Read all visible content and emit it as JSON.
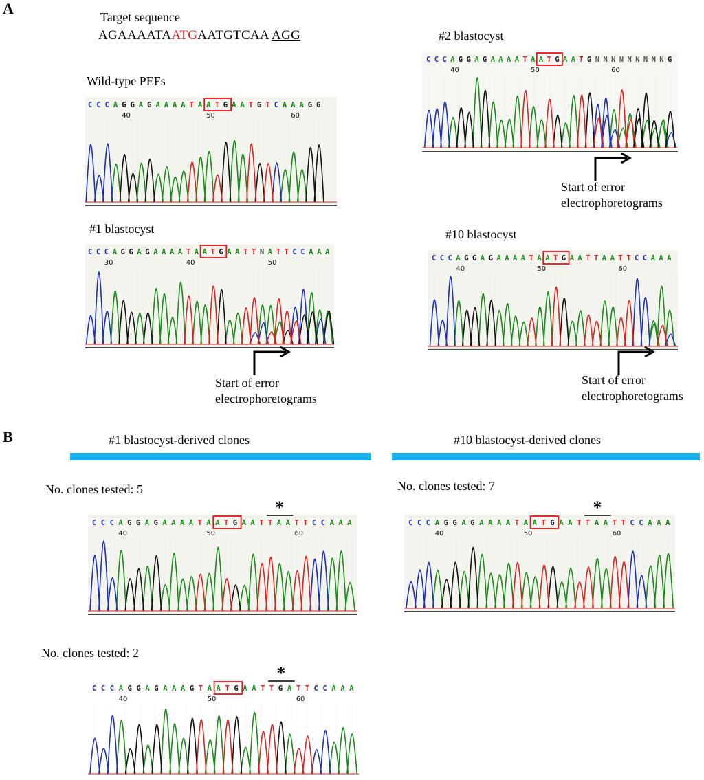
{
  "panel_labels": {
    "a": "A",
    "b": "B"
  },
  "target": {
    "title": "Target sequence",
    "pre": "AGAAAATA",
    "atg": "ATG",
    "mid": "AATGTCAA",
    "pam": "AGG"
  },
  "colors": {
    "A": "#1a8a1a",
    "C": "#1c2fb8",
    "G": "#111111",
    "T": "#e0201e",
    "N": "#555555",
    "box": "#e8141c",
    "bar": "#1ab0ea"
  },
  "traces": [
    {
      "id": "wt",
      "title": "Wild-type PEFs",
      "bases": "CCCAGGAGAAAATAATGAATGTCAAAGG",
      "ticks": [
        "40",
        "50",
        "60"
      ]
    },
    {
      "id": "b1",
      "title": "#1 blastocyst",
      "bases": "CCCAGGAGAAAATAATGAATTNATTCCAAA",
      "ticks": [
        "30",
        "40",
        "50"
      ]
    },
    {
      "id": "b2",
      "title": "#2 blastocyst",
      "bases": "CCCAGGAGAAAATAATGAATGNNNNNNNNNG",
      "ticks": [
        "40",
        "50",
        "60"
      ]
    },
    {
      "id": "b10",
      "title": "#10 blastocyst",
      "bases": "CCCAGGAGAAAATAATGAATTAATTCCAAA",
      "ticks": [
        "40",
        "50",
        "60"
      ]
    },
    {
      "id": "c1a",
      "title": "No. clones tested: 5",
      "bases": "CCCAGGAGAAAATAATGAATTAATTCCAAA",
      "ticks": [
        "40",
        "50",
        "60"
      ]
    },
    {
      "id": "c10",
      "title": "No. clones tested: 7",
      "bases": "CCCAGGAGAAAATAATGAATTAATTCCAAA",
      "ticks": [
        "40",
        "50",
        "60"
      ]
    },
    {
      "id": "c1b",
      "title": "No. clones tested: 2",
      "bases": "CCCAGGAGAAAGTAATGAATTGATTCCAAA",
      "ticks": [
        "40",
        "50",
        "60"
      ]
    }
  ],
  "error_note": {
    "line1": "Start of error",
    "line2": "electrophoretograms"
  },
  "star": "*",
  "headers": {
    "left": "#1 blastocyst-derived clones",
    "right": "#10 blastocyst-derived clones"
  }
}
